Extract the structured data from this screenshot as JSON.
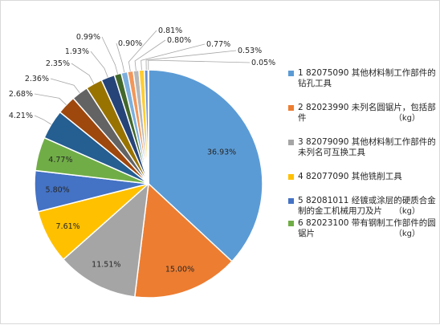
{
  "chart_data": {
    "type": "pie",
    "title": "",
    "slices": [
      {
        "label": "36.93%",
        "value": 36.93,
        "color": "#5B9BD5"
      },
      {
        "label": "15.00%",
        "value": 15.0,
        "color": "#ED7D31"
      },
      {
        "label": "11.51%",
        "value": 11.51,
        "color": "#A5A5A5"
      },
      {
        "label": "7.61%",
        "value": 7.61,
        "color": "#FFC000"
      },
      {
        "label": "5.80%",
        "value": 5.8,
        "color": "#4472C4"
      },
      {
        "label": "4.77%",
        "value": 4.77,
        "color": "#70AD47"
      },
      {
        "label": "4.21%",
        "value": 4.21,
        "color": "#255E91"
      },
      {
        "label": "2.68%",
        "value": 2.68,
        "color": "#9E480E"
      },
      {
        "label": "2.36%",
        "value": 2.36,
        "color": "#636363"
      },
      {
        "label": "2.35%",
        "value": 2.35,
        "color": "#997300"
      },
      {
        "label": "1.93%",
        "value": 1.93,
        "color": "#264478"
      },
      {
        "label": "0.99%",
        "value": 0.99,
        "color": "#43682B"
      },
      {
        "label": "0.90%",
        "value": 0.9,
        "color": "#7CAFDD"
      },
      {
        "label": "0.81%",
        "value": 0.81,
        "color": "#F1975A"
      },
      {
        "label": "0.80%",
        "value": 0.8,
        "color": "#B7B7B7"
      },
      {
        "label": "0.77%",
        "value": 0.77,
        "color": "#FFCD33"
      },
      {
        "label": "0.53%",
        "value": 0.53,
        "color": "#698ED0"
      },
      {
        "label": "0.05%",
        "value": 0.05,
        "color": "#8CC168"
      }
    ],
    "legend": [
      {
        "text": "1 82075090 其他材料制工作部件的钻孔工具",
        "unit": "",
        "color": "#5B9BD5"
      },
      {
        "text": "2 82023990 未列名圆锯片，包括部件",
        "unit": "（kg）",
        "color": "#ED7D31"
      },
      {
        "text": "3 82079090 其他材料制工作部件的未列名可互换工具",
        "unit": "",
        "color": "#A5A5A5"
      },
      {
        "text": "4 82077090 其他铣削工具",
        "unit": "",
        "color": "#FFC000"
      },
      {
        "text": "5 82081011 经镀或涂层的硬质合金制的金工机械用刀及片",
        "unit": "（kg）",
        "color": "#4472C4"
      },
      {
        "text": "6 82023100 带有钢制工作部件的圆锯片",
        "unit": "（kg）",
        "color": "#70AD47"
      }
    ],
    "legend_placement": "right"
  }
}
